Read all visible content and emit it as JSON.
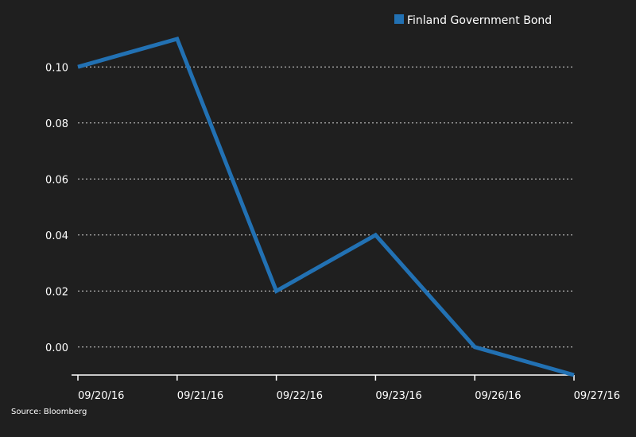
{
  "chart_data": {
    "type": "line",
    "title": "",
    "xlabel": "",
    "ylabel": "",
    "categories": [
      "09/20/16",
      "09/21/16",
      "09/22/16",
      "09/23/16",
      "09/26/16",
      "09/27/16"
    ],
    "series": [
      {
        "name": "Finland Government Bond",
        "values": [
          0.1,
          0.11,
          0.02,
          0.04,
          0.0,
          -0.01
        ],
        "color": "#2271b3"
      }
    ],
    "ylim": [
      -0.01,
      0.11
    ],
    "yticks": [
      "0.00",
      "0.02",
      "0.04",
      "0.06",
      "0.08",
      "0.10"
    ],
    "grid": true,
    "legend_position": "top-right",
    "background_color": "#1f1f1f",
    "text_color": "#ffffff",
    "source": "Source: Bloomberg"
  }
}
